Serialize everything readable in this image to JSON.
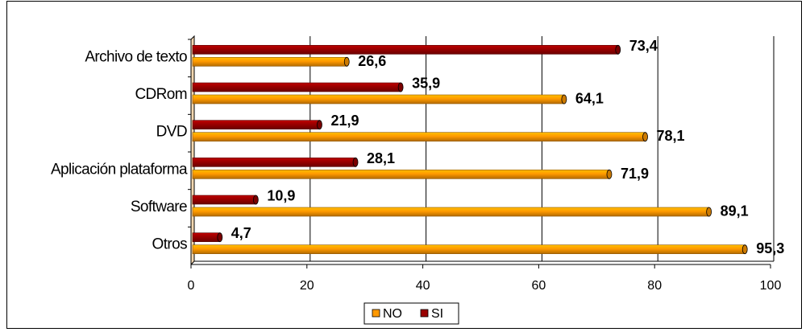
{
  "chart_data": {
    "type": "bar",
    "orientation": "horizontal",
    "categories": [
      "Archivo de texto",
      "CDRom",
      "DVD",
      "Aplicación plataforma",
      "Software",
      "Otros"
    ],
    "series": [
      {
        "name": "NO",
        "values": [
          "26,6",
          "64,1",
          "78,1",
          "71,9",
          "89,1",
          "95,3"
        ],
        "color": "#FF9900"
      },
      {
        "name": "SI",
        "values": [
          "73,4",
          "35,9",
          "21,9",
          "28,1",
          "10,9",
          "4,7"
        ],
        "color": "#990000"
      }
    ],
    "xlim": [
      0,
      100
    ],
    "xticks": [
      "0",
      "20",
      "40",
      "60",
      "80",
      "100"
    ],
    "grid": "vertical",
    "legend": "bottom",
    "style": "3d-cylinder"
  }
}
